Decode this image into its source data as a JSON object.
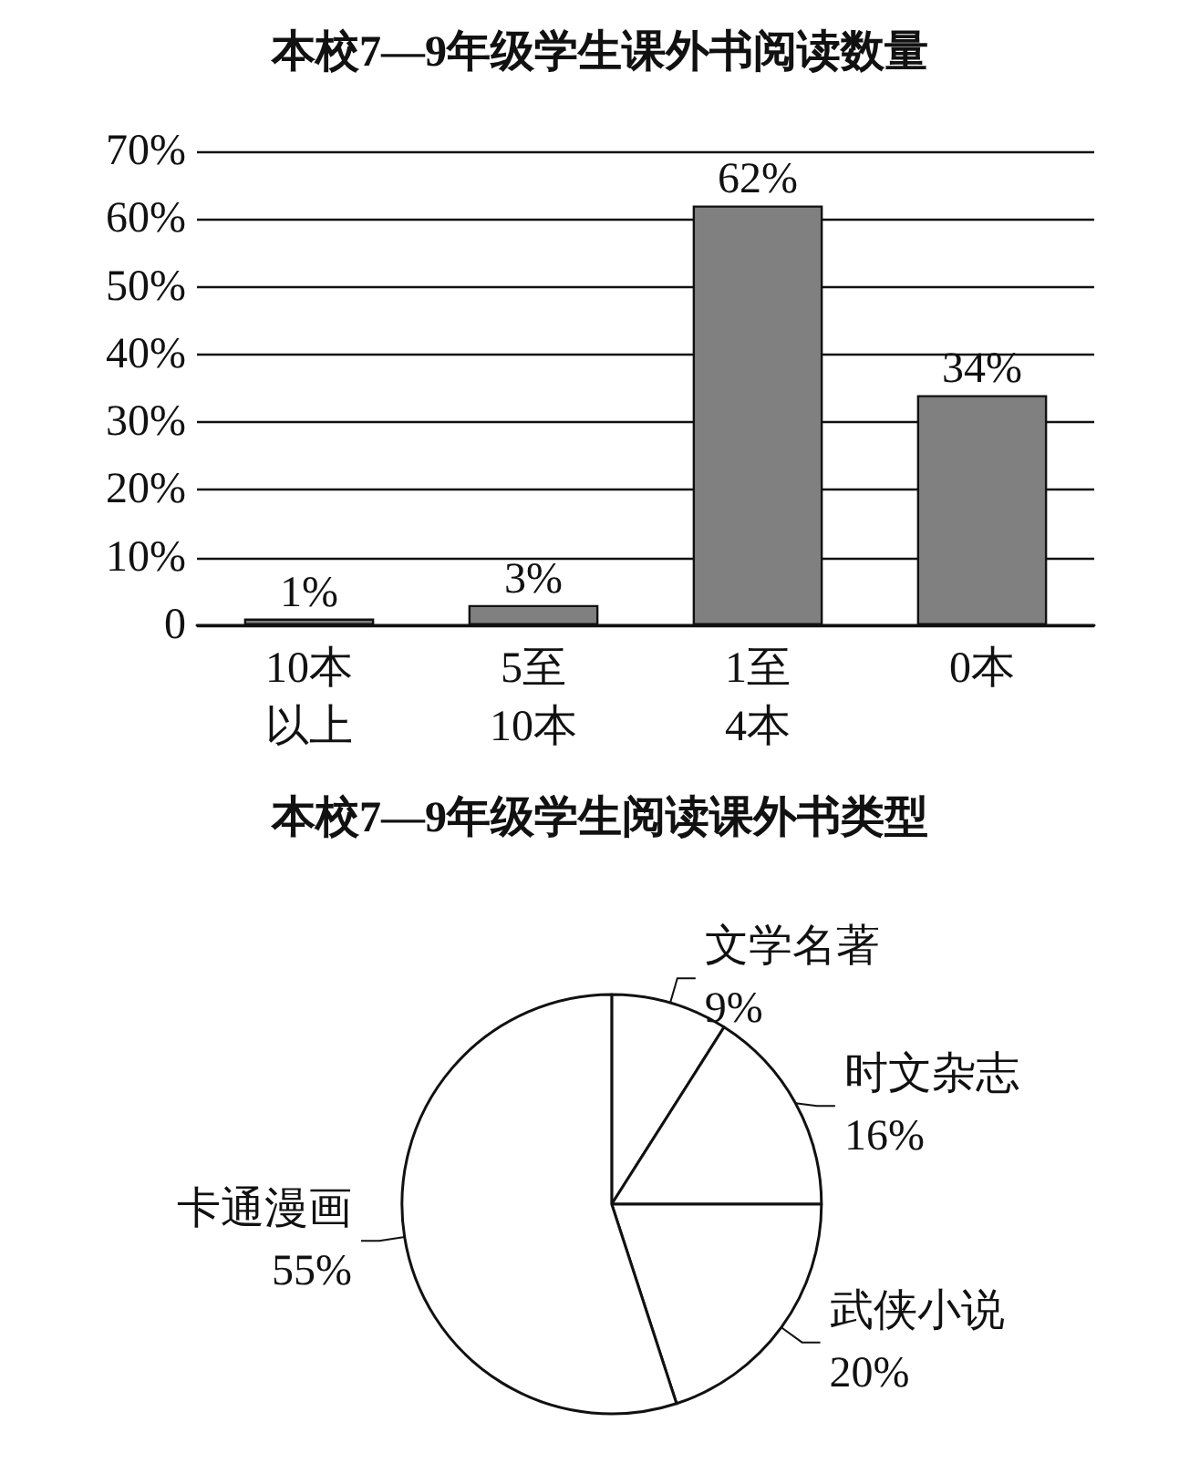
{
  "chart_data": [
    {
      "type": "bar",
      "title": "本校7—9年级学生课外书阅读数量",
      "categories": [
        "10本以上",
        "5至10本",
        "1至4本",
        "0本"
      ],
      "values": [
        1,
        3,
        62,
        34
      ],
      "value_labels": [
        "1%",
        "3%",
        "62%",
        "34%"
      ],
      "color": "#808080",
      "ylim": [
        0,
        70
      ],
      "yticks": [
        {
          "value": 0,
          "label": "0"
        },
        {
          "value": 10,
          "label": "10%"
        },
        {
          "value": 20,
          "label": "20%"
        },
        {
          "value": 30,
          "label": "30%"
        },
        {
          "value": 40,
          "label": "40%"
        },
        {
          "value": 50,
          "label": "50%"
        },
        {
          "value": 60,
          "label": "60%"
        },
        {
          "value": 70,
          "label": "70%"
        }
      ],
      "grid": "y",
      "legend": false
    },
    {
      "type": "pie",
      "title": "本校7—9年级学生阅读课外书类型",
      "categories": [
        "文学名著",
        "时文杂志",
        "武侠小说",
        "卡通漫画"
      ],
      "values": [
        9,
        16,
        20,
        55
      ],
      "value_labels": [
        "9%",
        "16%",
        "20%",
        "55%"
      ],
      "colors": [
        "#ffffff",
        "#ffffff",
        "#ffffff",
        "#ffffff"
      ],
      "legend": false
    }
  ]
}
